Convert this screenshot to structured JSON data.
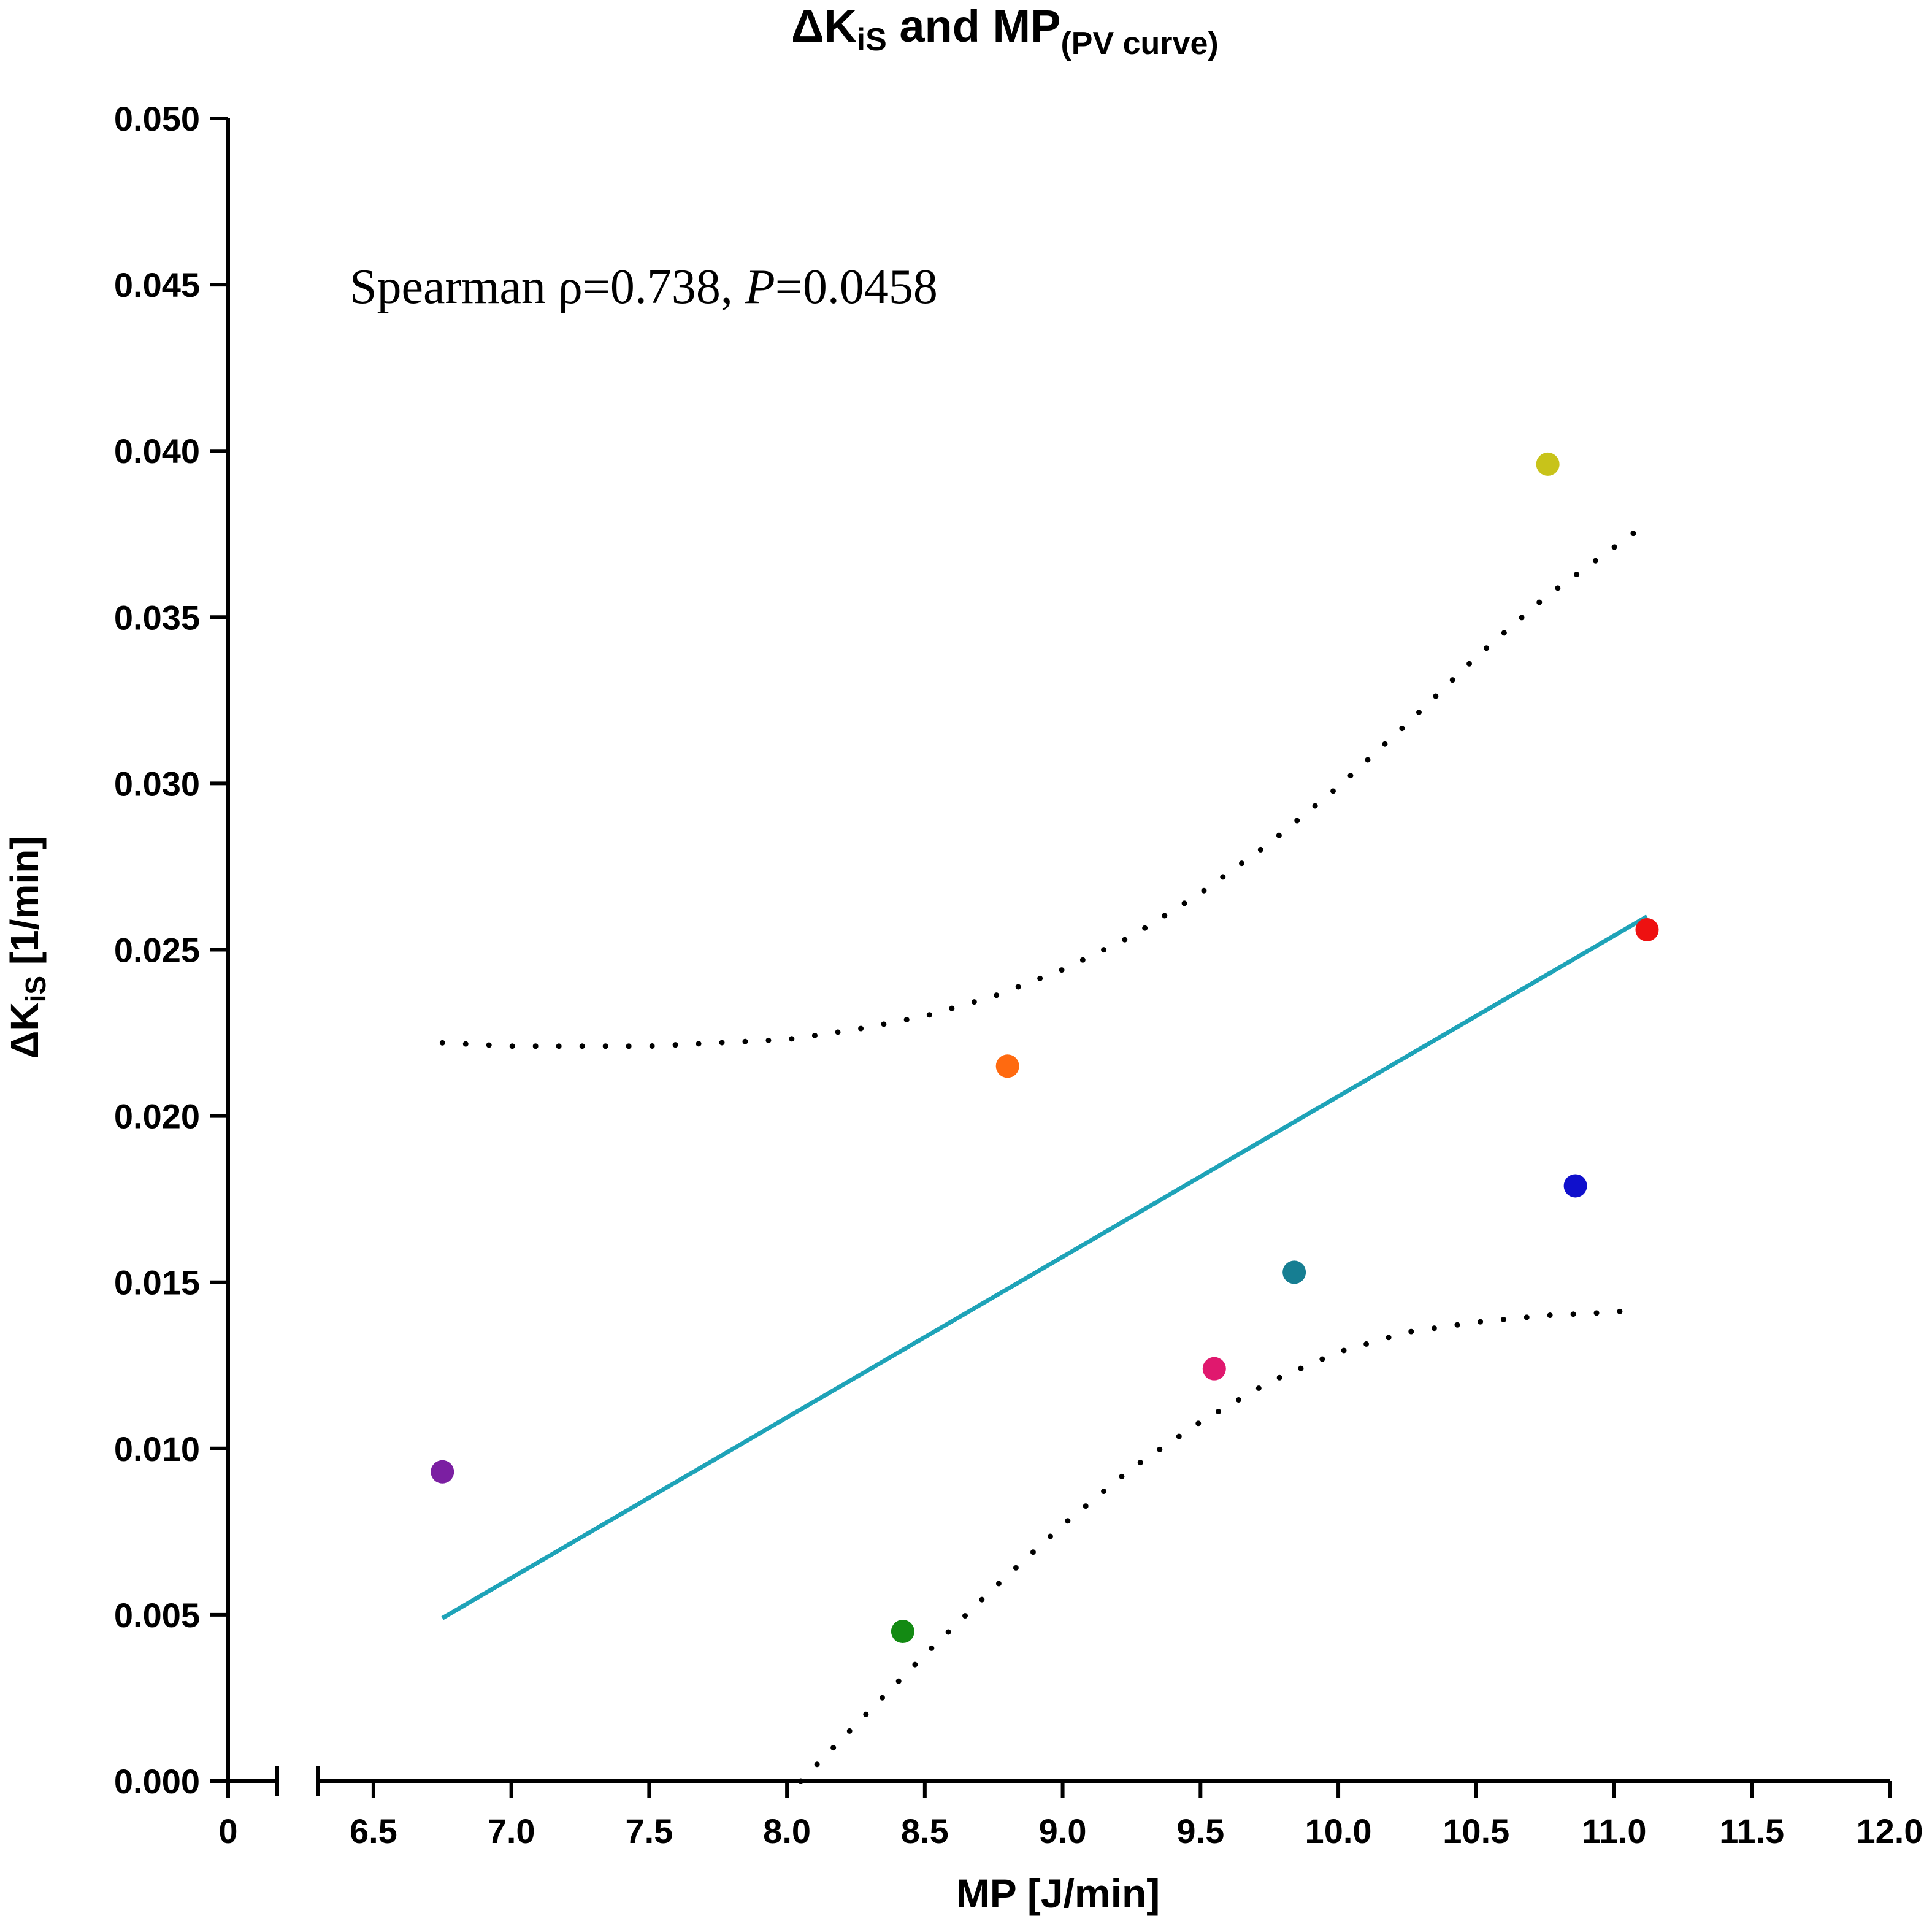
{
  "chart_data": {
    "type": "scatter",
    "title": "ΔK",
    "title_sub": "iS",
    "title_rest": " and MP",
    "title_suffix": "(PV curve)",
    "xlabel": "MP [J/min]",
    "ylabel_prefix": "ΔK",
    "ylabel_sub": "iS",
    "ylabel_suffix": " [1/min]",
    "annotation": {
      "prefix": "Spearman ρ=0.738, ",
      "italic": "P",
      "suffix": "=0.0458"
    },
    "x_break": {
      "low_tick": 0,
      "low_label": "0",
      "range": [
        6.3,
        12.0
      ]
    },
    "xlim": [
      6.3,
      12.0
    ],
    "ylim": [
      0.0,
      0.05
    ],
    "x_ticks": [
      6.5,
      7.0,
      7.5,
      8.0,
      8.5,
      9.0,
      9.5,
      10.0,
      10.5,
      11.0,
      11.5,
      12.0
    ],
    "x_tick_labels": [
      "6.5",
      "7.0",
      "7.5",
      "8.0",
      "8.5",
      "9.0",
      "9.5",
      "10.0",
      "10.5",
      "11.0",
      "11.5",
      "12.0"
    ],
    "y_ticks": [
      0.0,
      0.005,
      0.01,
      0.015,
      0.02,
      0.025,
      0.03,
      0.035,
      0.04,
      0.045,
      0.05
    ],
    "y_tick_labels": [
      "0.000",
      "0.005",
      "0.010",
      "0.015",
      "0.020",
      "0.025",
      "0.030",
      "0.035",
      "0.040",
      "0.045",
      "0.050"
    ],
    "points": [
      {
        "x": 6.75,
        "y": 0.0093,
        "color": "#7b1fa2"
      },
      {
        "x": 8.42,
        "y": 0.0045,
        "color": "#138a13"
      },
      {
        "x": 8.8,
        "y": 0.0215,
        "color": "#ff6a10"
      },
      {
        "x": 9.55,
        "y": 0.0124,
        "color": "#e0186e"
      },
      {
        "x": 9.84,
        "y": 0.0153,
        "color": "#167e92"
      },
      {
        "x": 10.76,
        "y": 0.0396,
        "color": "#c8c31a"
      },
      {
        "x": 10.86,
        "y": 0.0179,
        "color": "#1010cc"
      },
      {
        "x": 11.12,
        "y": 0.0256,
        "color": "#ee1111"
      }
    ],
    "regression_line": {
      "x": [
        6.75,
        11.12
      ],
      "y": [
        0.0049,
        0.026
      ],
      "color": "#1ea3b8"
    },
    "ci_upper": {
      "x": [
        6.75,
        7.0,
        7.25,
        7.5,
        7.75,
        8.0,
        8.25,
        8.5,
        8.75,
        9.0,
        9.25,
        9.5,
        9.75,
        10.0,
        10.25,
        10.5,
        10.75,
        11.0,
        11.1
      ],
      "y": [
        0.0222,
        0.0221,
        0.0221,
        0.0221,
        0.0222,
        0.0223,
        0.0226,
        0.023,
        0.0236,
        0.0244,
        0.0254,
        0.0267,
        0.0282,
        0.0299,
        0.0318,
        0.0338,
        0.0356,
        0.0371,
        0.0377
      ]
    },
    "ci_lower": {
      "x": [
        8.05,
        8.25,
        8.5,
        8.75,
        9.0,
        9.25,
        9.5,
        9.75,
        10.0,
        10.25,
        10.5,
        10.75,
        11.0,
        11.1
      ],
      "y": [
        0.0,
        0.0017,
        0.0038,
        0.0058,
        0.0077,
        0.0094,
        0.0108,
        0.012,
        0.0129,
        0.0135,
        0.0138,
        0.014,
        0.0141,
        0.0142
      ]
    }
  }
}
